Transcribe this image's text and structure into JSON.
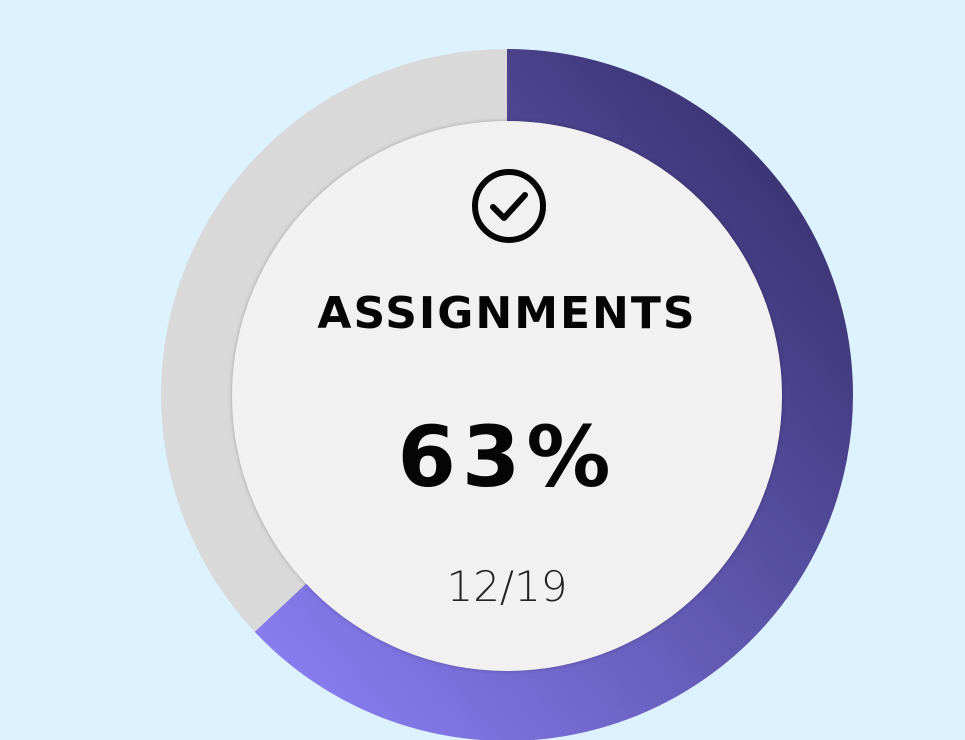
{
  "widget": {
    "title": "ASSIGNMENTS",
    "percent_label": "63%",
    "ratio_label": "12/19",
    "progress_fraction": 0.63,
    "icon": "check-circle-icon"
  },
  "colors": {
    "background": "#dcf3ff",
    "track": "#d9d9d9",
    "progress_start": "#8b7ff4",
    "progress_end": "#332c66",
    "inner_fill": "#f1f1f2",
    "text": "#050505"
  }
}
